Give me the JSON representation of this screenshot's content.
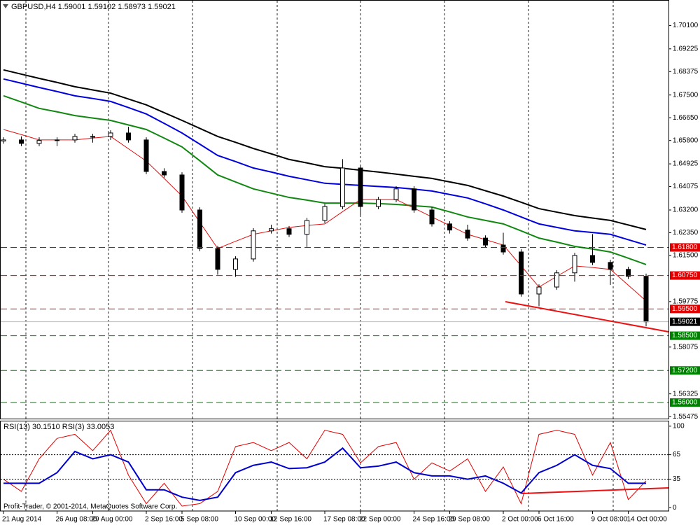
{
  "chart_data": [
    {
      "type": "candlestick",
      "title": "GBPUSD,H4  1.59001 1.59102 1.58973 1.59021",
      "categories": [
        "21 Aug 2014",
        null,
        null,
        "26 Aug 08:00",
        null,
        "29 Aug 00:00",
        null,
        null,
        "2 Sep 16:00",
        null,
        "5 Sep 08:00",
        null,
        null,
        "10 Sep 00:00",
        null,
        "12 Sep 16:00",
        null,
        null,
        "17 Sep 08:00",
        null,
        "22 Sep 00:00",
        null,
        null,
        "24 Sep 16:00",
        null,
        "29 Sep 08:00",
        null,
        null,
        "2 Oct 00:00",
        null,
        "6 Oct 16:00",
        null,
        null,
        "9 Oct 08:00",
        null,
        "14 Oct 00:00",
        null
      ],
      "open": [
        1.6578,
        1.6582,
        1.6569,
        1.658,
        1.6582,
        1.6595,
        1.6595,
        1.6608,
        1.6582,
        1.6464,
        1.6451,
        1.632,
        1.6176,
        1.6098,
        1.6137,
        1.6242,
        1.625,
        1.6229,
        1.6281,
        1.6333,
        1.6477,
        1.6333,
        1.6359,
        1.6399,
        1.632,
        1.6268,
        1.6245,
        1.6215,
        1.6189,
        1.6163,
        1.6006,
        1.6032,
        1.6085,
        1.615,
        1.6124,
        1.6098,
        1.6072
      ],
      "high": [
        1.6592,
        1.6595,
        1.6592,
        1.6592,
        1.6605,
        1.6605,
        1.6618,
        1.6631,
        1.6592,
        1.6476,
        1.6461,
        1.633,
        1.6186,
        1.6147,
        1.6252,
        1.6265,
        1.626,
        1.6291,
        1.6343,
        1.651,
        1.6487,
        1.6369,
        1.6409,
        1.6409,
        1.633,
        1.6278,
        1.6265,
        1.6225,
        1.6235,
        1.6173,
        1.6042,
        1.6095,
        1.616,
        1.623,
        1.6134,
        1.6108,
        1.6082
      ],
      "low": [
        1.6568,
        1.6559,
        1.6559,
        1.6559,
        1.6572,
        1.6572,
        1.6582,
        1.6572,
        1.6454,
        1.6441,
        1.631,
        1.6166,
        1.6078,
        1.607,
        1.6127,
        1.6232,
        1.6219,
        1.6182,
        1.6271,
        1.6323,
        1.63,
        1.6323,
        1.6349,
        1.631,
        1.6258,
        1.6232,
        1.6205,
        1.6179,
        1.6153,
        1.5996,
        1.596,
        1.6022,
        1.6052,
        1.6114,
        1.604,
        1.6062,
        1.5885
      ],
      "close": [
        1.6582,
        1.6569,
        1.658,
        1.6582,
        1.6595,
        1.6595,
        1.6608,
        1.6582,
        1.6464,
        1.6451,
        1.632,
        1.6176,
        1.6098,
        1.6137,
        1.6242,
        1.625,
        1.6229,
        1.6281,
        1.6333,
        1.6477,
        1.6333,
        1.6359,
        1.6399,
        1.632,
        1.6268,
        1.6245,
        1.6215,
        1.6189,
        1.6163,
        1.6006,
        1.6032,
        1.6085,
        1.615,
        1.6124,
        1.6098,
        1.6072,
        1.5902
      ],
      "series": [
        {
          "color": "#000000",
          "values": [
            1.6844,
            1.6828,
            1.6812,
            1.6797,
            1.6781,
            1.6769,
            1.6757,
            1.6735,
            1.6713,
            1.6684,
            1.6655,
            1.6625,
            1.6595,
            1.6573,
            1.655,
            1.653,
            1.6509,
            1.6496,
            1.6482,
            1.6476,
            1.6469,
            1.6462,
            1.6454,
            1.6446,
            1.6438,
            1.6425,
            1.6412,
            1.6392,
            1.6372,
            1.6349,
            1.6325,
            1.6312,
            1.6299,
            1.629,
            1.6281,
            1.6264,
            1.6247
          ]
        },
        {
          "color": "#0000dd",
          "values": [
            1.681,
            1.6794,
            1.6778,
            1.6763,
            1.6747,
            1.6737,
            1.6726,
            1.6703,
            1.6679,
            1.6644,
            1.6608,
            1.6566,
            1.6524,
            1.6501,
            1.6477,
            1.6462,
            1.6446,
            1.6433,
            1.642,
            1.6416,
            1.6412,
            1.6408,
            1.6404,
            1.6398,
            1.6391,
            1.6378,
            1.6365,
            1.6343,
            1.632,
            1.6294,
            1.6268,
            1.6255,
            1.6242,
            1.6236,
            1.6229,
            1.6209,
            1.6189
          ]
        },
        {
          "color": "#118811",
          "values": [
            1.6747,
            1.6724,
            1.67,
            1.6687,
            1.6673,
            1.6664,
            1.6655,
            1.6638,
            1.6621,
            1.6589,
            1.6556,
            1.6504,
            1.6451,
            1.6425,
            1.6399,
            1.6383,
            1.6367,
            1.6357,
            1.6346,
            1.6346,
            1.6346,
            1.6344,
            1.6341,
            1.6336,
            1.6331,
            1.6313,
            1.6294,
            1.6281,
            1.6268,
            1.6242,
            1.6215,
            1.62,
            1.6184,
            1.6174,
            1.6163,
            1.614,
            1.6116
          ]
        },
        {
          "color": "#e01010",
          "values": [
            1.6621,
            1.6602,
            1.6582,
            1.6582,
            1.6582,
            1.6589,
            1.6595,
            1.6549,
            1.6503,
            1.6438,
            1.6372,
            1.6274,
            1.6176,
            1.6203,
            1.6229,
            1.6242,
            1.6255,
            1.6262,
            1.6268,
            1.6314,
            1.6359,
            1.6359,
            1.6359,
            1.6327,
            1.6294,
            1.6262,
            1.6229,
            1.6209,
            1.6189,
            1.6111,
            1.6032,
            1.6072,
            1.6111,
            1.6105,
            1.6098,
            1.6039,
            1.598
          ]
        }
      ],
      "ylim": [
        1.554,
        1.71
      ],
      "yticks": [
        {
          "value": 1.701,
          "label": "1.70100"
        },
        {
          "value": 1.69225,
          "label": "1.69225"
        },
        {
          "value": 1.68375,
          "label": "1.68375"
        },
        {
          "value": 1.675,
          "label": "1.67500"
        },
        {
          "value": 1.6665,
          "label": "1.66650"
        },
        {
          "value": 1.658,
          "label": "1.65800"
        },
        {
          "value": 1.64925,
          "label": "1.64925"
        },
        {
          "value": 1.64075,
          "label": "1.64075"
        },
        {
          "value": 1.632,
          "label": "1.63200"
        },
        {
          "value": 1.6235,
          "label": "1.62350"
        },
        {
          "value": 1.615,
          "label": "1.61500"
        },
        {
          "value": 1.59775,
          "label": "1.59775"
        },
        {
          "value": 1.58075,
          "label": "1.58075"
        },
        {
          "value": 1.56325,
          "label": "1.56325"
        },
        {
          "value": 1.55475,
          "label": "1.55475"
        }
      ],
      "levels": [
        {
          "value": 1.618,
          "label": "1.61800",
          "color": "#e00000"
        },
        {
          "value": 1.6075,
          "label": "1.60750",
          "color": "#e00000"
        },
        {
          "value": 1.595,
          "label": "1.59500",
          "color": "#e00000"
        },
        {
          "value": 1.585,
          "label": "1.58500",
          "color": "#008000"
        },
        {
          "value": 1.572,
          "label": "1.57200",
          "color": "#008000"
        },
        {
          "value": 1.56,
          "label": "1.56000",
          "color": "#008000"
        }
      ],
      "price_line": {
        "value": 1.59021,
        "label": "1.59021",
        "color": "#000000"
      }
    },
    {
      "type": "line",
      "title": "RSI(13) 30.1510 RSI(3) 33.0053",
      "series": [
        {
          "color": "#e00000",
          "values": [
            35,
            20,
            60,
            85,
            90,
            70,
            95,
            40,
            5,
            30,
            2,
            5,
            20,
            75,
            80,
            70,
            80,
            60,
            95,
            90,
            55,
            75,
            80,
            35,
            55,
            45,
            60,
            20,
            50,
            5,
            90,
            95,
            90,
            40,
            80,
            10,
            33
          ]
        },
        {
          "color": "#0000cc",
          "values": [
            30,
            30,
            30,
            43,
            69,
            60,
            65,
            56,
            22,
            22,
            13,
            9,
            13,
            43,
            52,
            56,
            48,
            49,
            56,
            73,
            49,
            51,
            56,
            43,
            39,
            39,
            35,
            39,
            30,
            18,
            43,
            52,
            65,
            52,
            48,
            30,
            30
          ]
        }
      ],
      "ylim": [
        -4,
        105
      ],
      "yticks": [
        100,
        65,
        35,
        0
      ],
      "levels": [
        65,
        35
      ]
    }
  ],
  "watermark": "Profit-Trader, © 2001-2014, MetaQuotes Software Corp."
}
